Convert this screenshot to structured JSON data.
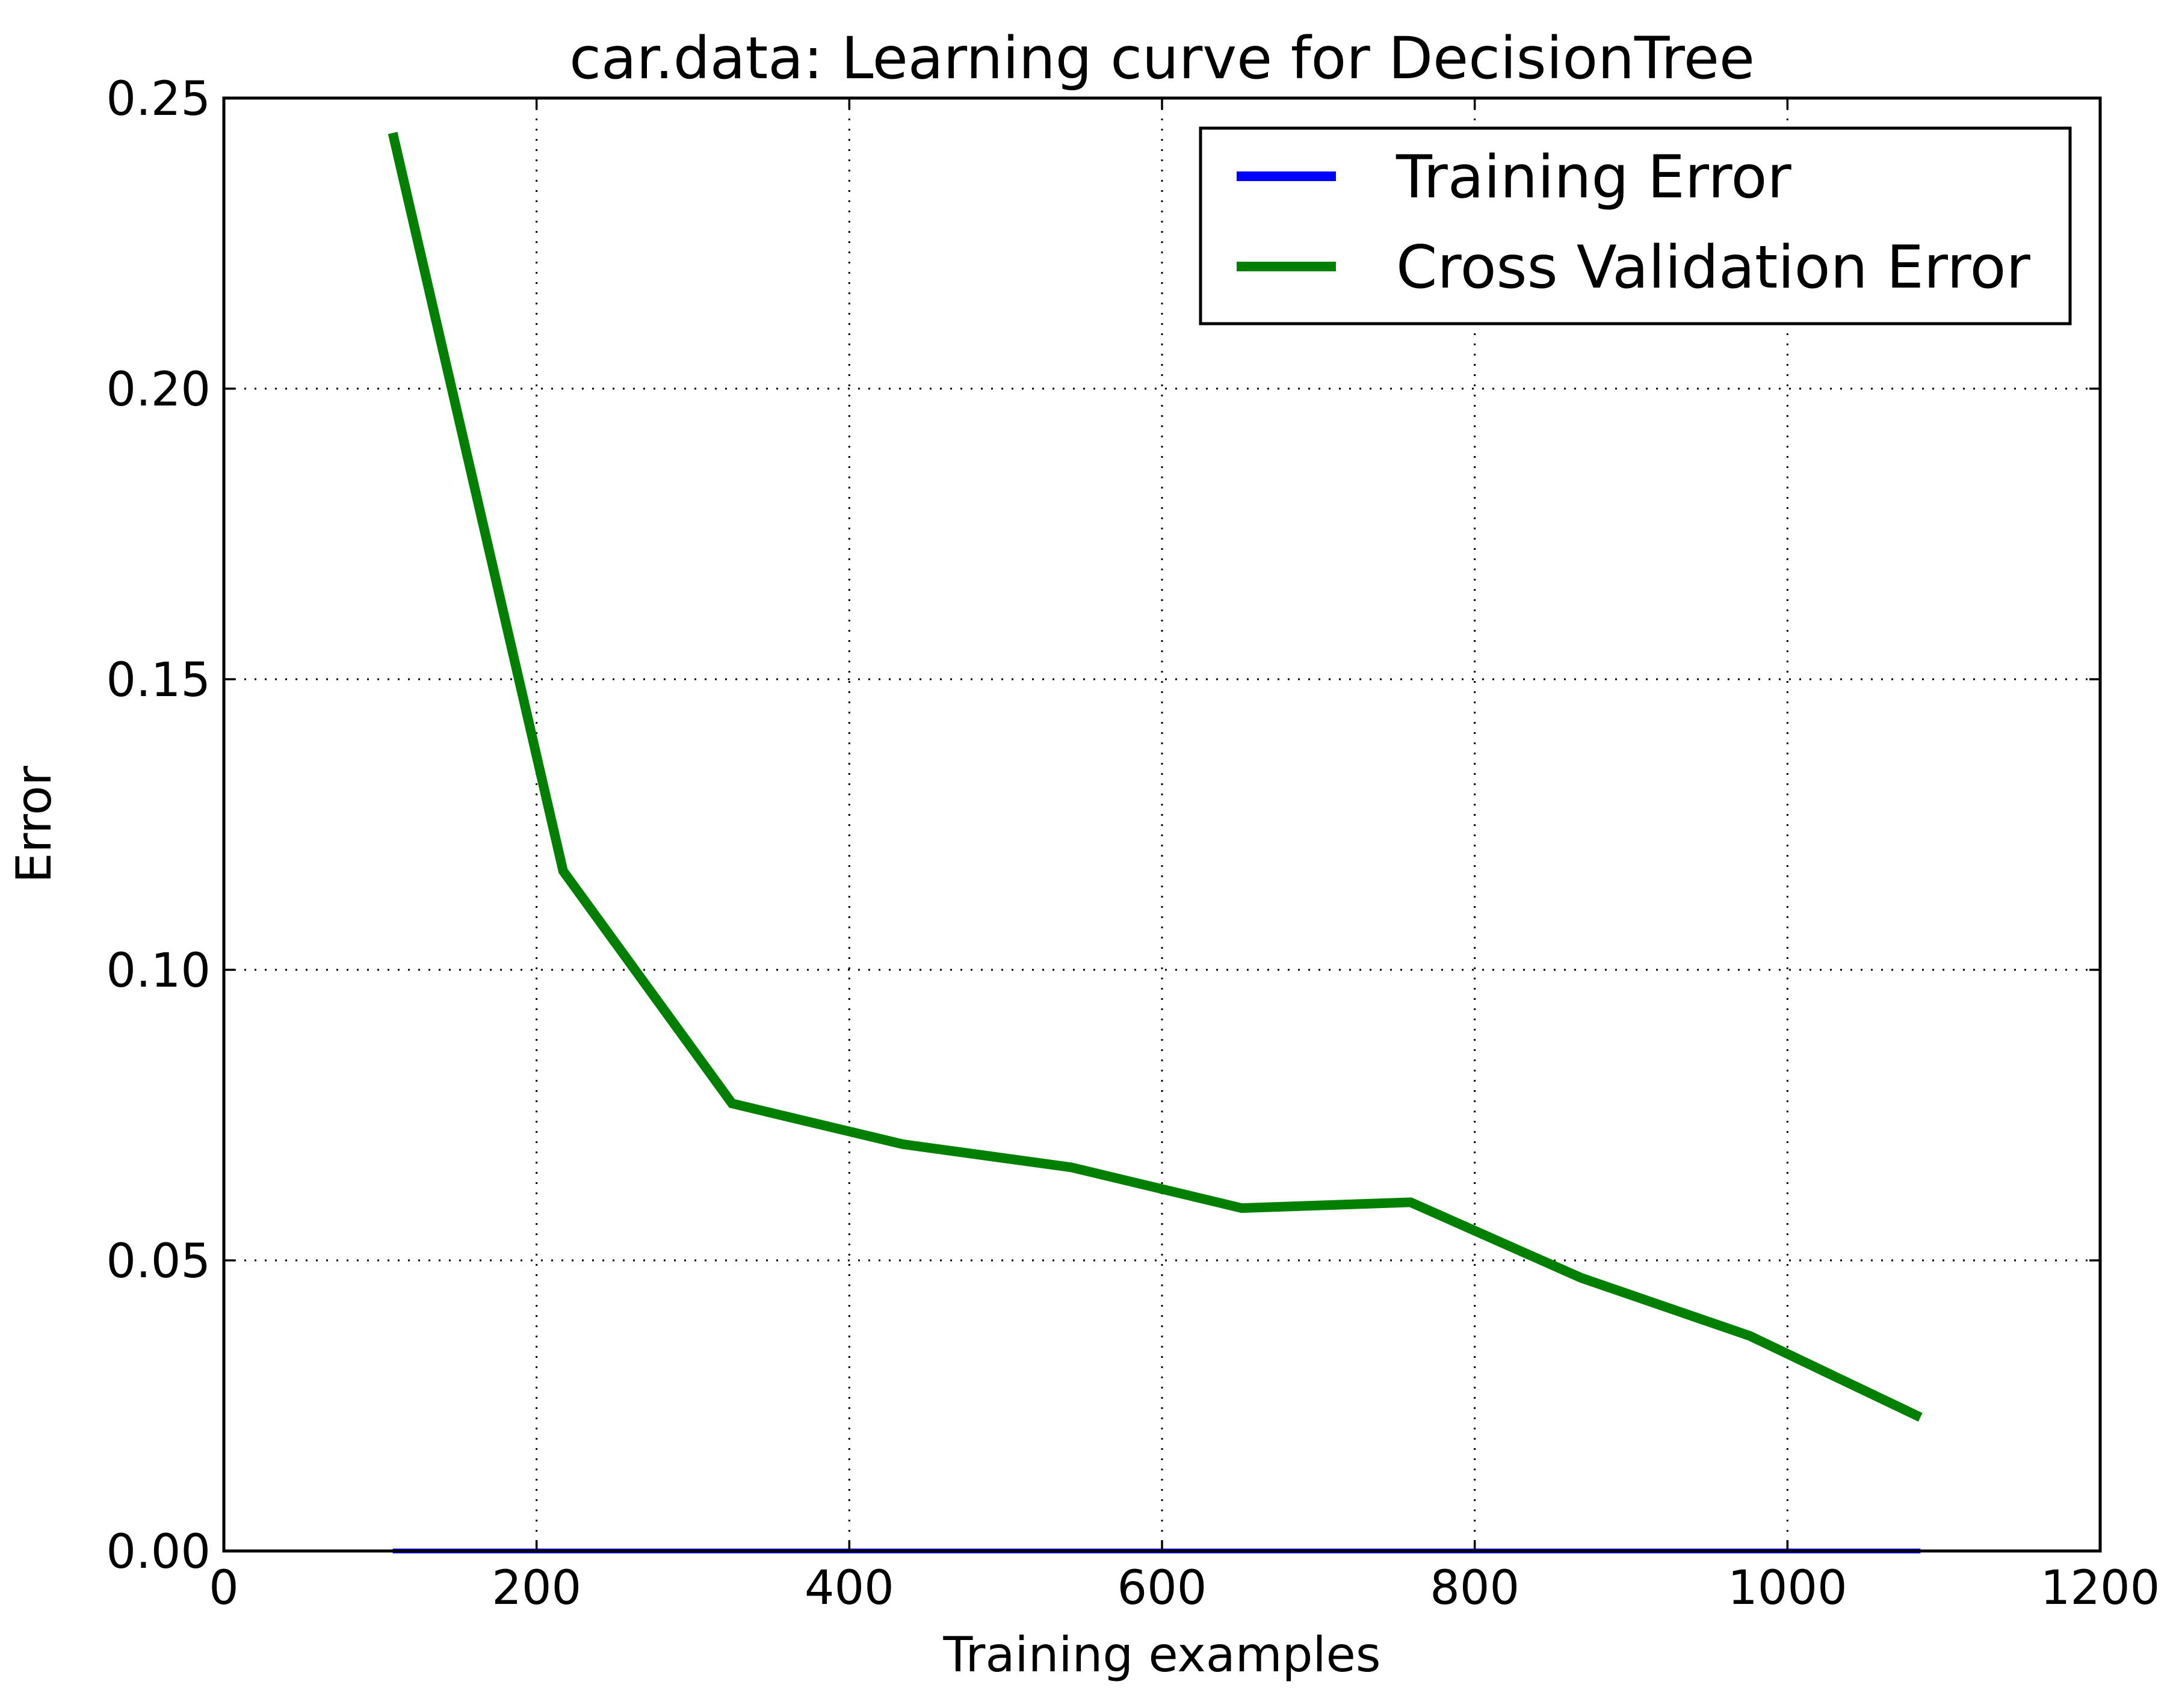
{
  "chart_data": {
    "type": "line",
    "title": "car.data: Learning curve for DecisionTree",
    "xlabel": "Training examples",
    "ylabel": "Error",
    "xlim": [
      0,
      1200
    ],
    "ylim": [
      0,
      0.25
    ],
    "xticks": [
      0,
      200,
      400,
      600,
      800,
      1000,
      1200
    ],
    "xtick_labels": [
      "0",
      "200",
      "400",
      "600",
      "800",
      "1000",
      "1200"
    ],
    "yticks": [
      0.0,
      0.05,
      0.1,
      0.15,
      0.2,
      0.25
    ],
    "ytick_labels": [
      "0.00",
      "0.05",
      "0.10",
      "0.15",
      "0.20",
      "0.25"
    ],
    "grid": true,
    "legend_position": "top-right",
    "x": [
      108,
      217,
      325,
      434,
      542,
      651,
      759,
      868,
      976,
      1085
    ],
    "series": [
      {
        "name": "Training Error",
        "color": "#0000ff",
        "values": [
          0,
          0,
          0,
          0,
          0,
          0,
          0,
          0,
          0,
          0
        ]
      },
      {
        "name": "Cross Validation Error",
        "color": "#007f00",
        "values": [
          0.244,
          0.117,
          0.077,
          0.07,
          0.066,
          0.059,
          0.06,
          0.047,
          0.037,
          0.023
        ]
      }
    ]
  }
}
